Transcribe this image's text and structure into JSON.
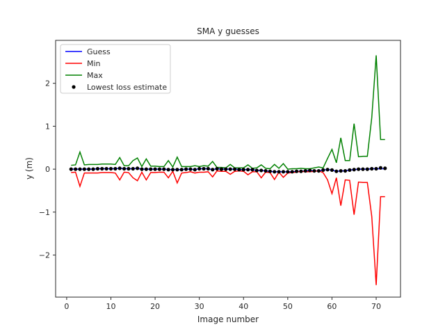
{
  "chart_data": {
    "type": "line",
    "title": "SMA y guesses",
    "xlabel": "Image number",
    "ylabel": "y (m)",
    "xlim": [
      -2.5,
      75.5
    ],
    "ylim": [
      -2.98,
      3.0
    ],
    "xticks": [
      0,
      10,
      20,
      30,
      40,
      50,
      60,
      70
    ],
    "yticks": [
      -2,
      -1,
      0,
      1,
      2
    ],
    "ytick_labels": [
      "−2",
      "−1",
      "0",
      "1",
      "2"
    ],
    "legend_position": "upper-left",
    "grid": false,
    "x": [
      1,
      2,
      3,
      4,
      5,
      6,
      7,
      8,
      9,
      10,
      11,
      12,
      13,
      14,
      15,
      16,
      17,
      18,
      19,
      20,
      21,
      22,
      23,
      24,
      25,
      26,
      27,
      28,
      29,
      30,
      31,
      32,
      33,
      34,
      35,
      36,
      37,
      38,
      39,
      40,
      41,
      42,
      43,
      44,
      45,
      46,
      47,
      48,
      49,
      50,
      51,
      52,
      53,
      54,
      55,
      56,
      57,
      58,
      59,
      60,
      61,
      62,
      63,
      64,
      65,
      66,
      67,
      68,
      69,
      70,
      71,
      72
    ],
    "series": [
      {
        "name": "Guess",
        "color": "#0000ff",
        "style": "line",
        "values": [
          0.0,
          0.0,
          0.0,
          0.0,
          0.0,
          0.0,
          0.01,
          0.01,
          0.01,
          0.01,
          0.01,
          0.02,
          0.01,
          0.01,
          0.01,
          0.02,
          0.0,
          0.0,
          0.0,
          0.0,
          0.0,
          0.0,
          -0.01,
          -0.01,
          -0.01,
          -0.01,
          0.0,
          0.0,
          -0.01,
          0.01,
          0.01,
          0.01,
          -0.01,
          0.01,
          0.0,
          0.0,
          0.0,
          0.0,
          -0.01,
          -0.01,
          -0.01,
          -0.01,
          -0.03,
          -0.03,
          -0.04,
          -0.05,
          -0.06,
          -0.06,
          -0.06,
          -0.06,
          -0.06,
          -0.05,
          -0.05,
          -0.04,
          -0.03,
          -0.04,
          -0.04,
          -0.02,
          -0.01,
          -0.02,
          -0.05,
          -0.04,
          -0.04,
          -0.02,
          -0.01,
          0.0,
          0.0,
          0.0,
          0.01,
          0.01,
          0.01,
          0.01
        ]
      },
      {
        "name": "Min",
        "color": "#ff0000",
        "style": "line",
        "values": [
          -0.08,
          -0.07,
          -0.4,
          -0.09,
          -0.09,
          -0.09,
          -0.09,
          -0.08,
          -0.08,
          -0.08,
          -0.09,
          -0.25,
          -0.07,
          -0.08,
          -0.2,
          -0.27,
          -0.07,
          -0.25,
          -0.08,
          -0.08,
          -0.07,
          -0.07,
          -0.2,
          -0.05,
          -0.32,
          -0.09,
          -0.08,
          -0.06,
          -0.09,
          -0.07,
          -0.07,
          -0.06,
          -0.18,
          -0.04,
          -0.05,
          -0.05,
          -0.12,
          -0.05,
          -0.04,
          -0.05,
          -0.13,
          -0.06,
          -0.06,
          -0.2,
          -0.07,
          -0.08,
          -0.24,
          -0.07,
          -0.19,
          -0.09,
          -0.08,
          -0.07,
          -0.05,
          -0.06,
          -0.06,
          -0.05,
          -0.04,
          -0.08,
          -0.25,
          -0.57,
          -0.2,
          -0.85,
          -0.25,
          -0.26,
          -1.06,
          -0.3,
          -0.31,
          -0.31,
          -1.1,
          -2.7,
          -0.64,
          -0.64
        ]
      },
      {
        "name": "Max",
        "color": "#008000",
        "style": "line",
        "values": [
          0.09,
          0.1,
          0.4,
          0.1,
          0.11,
          0.11,
          0.11,
          0.12,
          0.12,
          0.12,
          0.11,
          0.27,
          0.08,
          0.08,
          0.2,
          0.26,
          0.06,
          0.24,
          0.07,
          0.07,
          0.06,
          0.06,
          0.2,
          0.05,
          0.28,
          0.06,
          0.06,
          0.06,
          0.08,
          0.06,
          0.08,
          0.07,
          0.18,
          0.04,
          0.04,
          0.03,
          0.11,
          0.03,
          0.03,
          0.03,
          0.1,
          0.02,
          0.03,
          0.1,
          0.02,
          0.01,
          0.11,
          0.02,
          0.13,
          0.0,
          0.01,
          0.01,
          0.02,
          0.01,
          0.01,
          0.03,
          0.05,
          0.03,
          0.25,
          0.46,
          0.15,
          0.73,
          0.2,
          0.2,
          1.06,
          0.29,
          0.3,
          0.3,
          1.2,
          2.65,
          0.69,
          0.69
        ]
      },
      {
        "name": "Lowest loss estimate",
        "color": "#000000",
        "style": "scatter",
        "values": [
          0.0,
          0.0,
          0.0,
          0.0,
          0.0,
          0.0,
          0.01,
          0.01,
          0.01,
          0.01,
          0.01,
          0.02,
          0.01,
          0.01,
          0.01,
          0.02,
          0.0,
          0.0,
          0.0,
          0.0,
          0.0,
          0.0,
          -0.01,
          -0.01,
          -0.01,
          -0.01,
          0.0,
          0.0,
          -0.01,
          0.01,
          0.01,
          0.01,
          -0.01,
          0.01,
          0.0,
          0.0,
          0.0,
          0.0,
          -0.01,
          -0.01,
          -0.01,
          -0.01,
          -0.03,
          -0.03,
          -0.04,
          -0.05,
          -0.06,
          -0.06,
          -0.06,
          -0.06,
          -0.06,
          -0.05,
          -0.05,
          -0.04,
          -0.03,
          -0.04,
          -0.04,
          -0.02,
          -0.01,
          -0.02,
          -0.05,
          -0.04,
          -0.04,
          -0.02,
          -0.01,
          0.0,
          0.0,
          0.0,
          0.01,
          0.01,
          0.03,
          0.02
        ]
      }
    ]
  }
}
